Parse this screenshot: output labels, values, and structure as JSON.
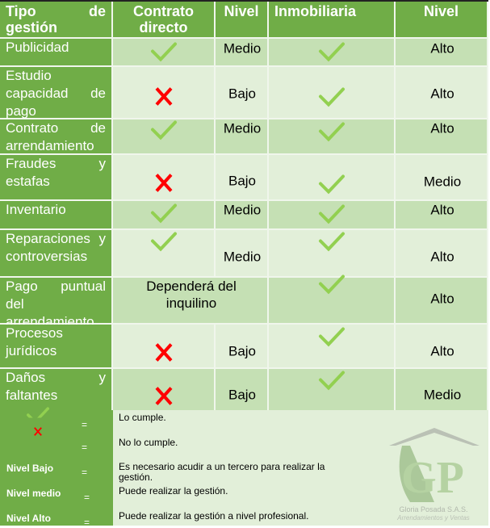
{
  "header": {
    "col1": "Tipo de gestión",
    "col2": "Contrato directo",
    "col3": "Nivel",
    "col4": "Inmobiliaria",
    "col5": "Nivel"
  },
  "rows": [
    {
      "tipo": "Publicidad",
      "contrato": "check",
      "nivel_directo": "Medio",
      "inmobiliaria": "check",
      "nivel_inmobiliaria": "Alto"
    },
    {
      "tipo": "Estudio capacidad de pago",
      "contrato": "cross",
      "nivel_directo": "Bajo",
      "inmobiliaria": "check",
      "nivel_inmobiliaria": "Alto"
    },
    {
      "tipo": "Contrato de arrendamiento",
      "contrato": "check",
      "nivel_directo": "Medio",
      "inmobiliaria": "check",
      "nivel_inmobiliaria": "Alto"
    },
    {
      "tipo": "Fraudes y estafas",
      "contrato": "cross",
      "nivel_directo": "Bajo",
      "inmobiliaria": "check",
      "nivel_inmobiliaria": "Medio"
    },
    {
      "tipo": "Inventario",
      "contrato": "check",
      "nivel_directo": "Medio",
      "inmobiliaria": "check",
      "nivel_inmobiliaria": "Alto"
    },
    {
      "tipo": "Reparaciones y controversias",
      "contrato": "check",
      "nivel_directo": "Medio",
      "inmobiliaria": "check",
      "nivel_inmobiliaria": "Alto"
    },
    {
      "tipo": "Pago puntual del arrendamiento",
      "contrato_note": "Dependerá del inquilino",
      "inmobiliaria": "check",
      "nivel_inmobiliaria": "Alto"
    },
    {
      "tipo": "Procesos jurídicos",
      "contrato": "cross",
      "nivel_directo": "Bajo",
      "inmobiliaria": "check",
      "nivel_inmobiliaria": "Alto"
    },
    {
      "tipo": "Daños y faltantes",
      "contrato": "cross",
      "nivel_directo": "Bajo",
      "inmobiliaria": "check",
      "nivel_inmobiliaria": "Medio"
    }
  ],
  "legend": [
    {
      "key": "check",
      "eq": "=",
      "desc": "Lo cumple."
    },
    {
      "key": "cross",
      "eq": "=",
      "desc": "No lo cumple."
    },
    {
      "key": "Nivel Bajo",
      "eq": "=",
      "desc": "Es necesario acudir a un tercero para realizar la gestión."
    },
    {
      "key": "Nivel medio",
      "eq": "=",
      "desc": "Puede realizar la gestión."
    },
    {
      "key": "Nivel Alto",
      "eq": "=",
      "desc": "Puede realizar la gestión a nivel profesional."
    }
  ],
  "logo": {
    "initials": "GP",
    "company": "Gloria Posada S.A.S.",
    "tagline": "Arrendamientos y Ventas"
  },
  "colors": {
    "header": "#70ad47",
    "row_dark": "#c5e0b4",
    "row_light": "#e2efd9",
    "check": "#92d050",
    "cross": "#ff0000"
  }
}
